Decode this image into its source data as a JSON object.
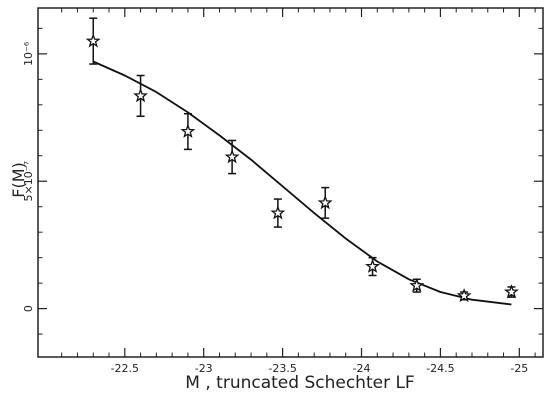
{
  "chart_data": {
    "type": "scatter",
    "xlabel": "M , truncated Schechter LF",
    "ylabel": "F(M)",
    "xlim": [
      -21.95,
      -25.15
    ],
    "ylim": [
      -1.9e-07,
      1.18e-06
    ],
    "x_ticks": [
      -22.5,
      -23,
      -23.5,
      -24,
      -24.5,
      -25
    ],
    "x_tick_labels": [
      "-22.5",
      "-23",
      "-23.5",
      "-24",
      "-24.5",
      "-25"
    ],
    "y_ticks": [
      0,
      5e-07,
      1e-06
    ],
    "y_tick_labels": [
      "0",
      "5×10⁻⁷",
      "10⁻⁶"
    ],
    "series": [
      {
        "kind": "points-with-errorbars",
        "marker": "star",
        "x": [
          -22.3,
          -22.6,
          -22.9,
          -23.18,
          -23.47,
          -23.77,
          -24.07,
          -24.35,
          -24.65,
          -24.95
        ],
        "y": [
          1.05e-06,
          8.35e-07,
          6.95e-07,
          5.95e-07,
          3.75e-07,
          4.15e-07,
          1.65e-07,
          9e-08,
          5e-08,
          6.5e-08
        ],
        "yerr": [
          9e-08,
          8e-08,
          7e-08,
          6.5e-08,
          5.5e-08,
          6e-08,
          3.5e-08,
          2.5e-08,
          1.5e-08,
          2e-08
        ]
      },
      {
        "kind": "curve",
        "x": [
          -22.3,
          -22.5,
          -22.7,
          -22.9,
          -23.1,
          -23.3,
          -23.5,
          -23.7,
          -23.9,
          -24.1,
          -24.3,
          -24.5,
          -24.7,
          -24.95
        ],
        "y": [
          9.7e-07,
          9.15e-07,
          8.5e-07,
          7.7e-07,
          6.8e-07,
          5.85e-07,
          4.8e-07,
          3.75e-07,
          2.75e-07,
          1.85e-07,
          1.15e-07,
          6.5e-08,
          3.5e-08,
          1.6e-08
        ]
      }
    ]
  }
}
